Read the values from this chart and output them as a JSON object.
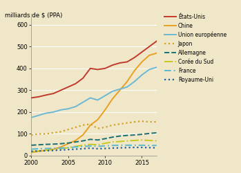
{
  "title": "",
  "ylabel": "milliards de $ (PPA)",
  "background_color": "#f0e6c8",
  "plot_background": "#f0e6c8",
  "grid_color": "#ffffff",
  "years": [
    2000,
    2001,
    2002,
    2003,
    2004,
    2005,
    2006,
    2007,
    2008,
    2009,
    2010,
    2011,
    2012,
    2013,
    2014,
    2015,
    2016,
    2017
  ],
  "series": [
    {
      "label": "États-Unis",
      "color": "#c0392b",
      "linestyle": "solid",
      "linewidth": 1.4,
      "data": [
        265,
        270,
        278,
        285,
        300,
        315,
        330,
        355,
        400,
        395,
        400,
        415,
        425,
        430,
        450,
        475,
        500,
        525
      ]
    },
    {
      "label": "Chine",
      "color": "#e8a020",
      "linestyle": "solid",
      "linewidth": 1.4,
      "data": [
        15,
        20,
        25,
        30,
        40,
        55,
        70,
        95,
        140,
        165,
        210,
        260,
        300,
        340,
        390,
        430,
        460,
        470
      ]
    },
    {
      "label": "Union européenne",
      "color": "#6ab8d4",
      "linestyle": "solid",
      "linewidth": 1.4,
      "data": [
        175,
        185,
        195,
        200,
        210,
        215,
        225,
        245,
        265,
        255,
        275,
        295,
        305,
        315,
        340,
        370,
        395,
        405
      ]
    },
    {
      "label": "Japon",
      "color": "#d4a020",
      "linestyle": "dotted",
      "linewidth": 1.6,
      "data": [
        95,
        100,
        100,
        105,
        110,
        120,
        130,
        140,
        145,
        125,
        130,
        140,
        145,
        150,
        155,
        158,
        155,
        155
      ]
    },
    {
      "label": "Allemagne",
      "color": "#1a7070",
      "linestyle": "dashed",
      "linewidth": 1.4,
      "data": [
        48,
        50,
        52,
        53,
        55,
        58,
        63,
        68,
        75,
        72,
        78,
        85,
        90,
        93,
        95,
        98,
        102,
        105
      ]
    },
    {
      "label": "Corée du Sud",
      "color": "#c8c820",
      "linestyle": "dashdot",
      "linewidth": 1.4,
      "data": [
        18,
        22,
        25,
        28,
        32,
        37,
        43,
        48,
        52,
        50,
        57,
        63,
        65,
        68,
        70,
        72,
        70,
        68
      ]
    },
    {
      "label": "France",
      "color": "#5ab8d0",
      "linestyle": "dashdot",
      "linewidth": 1.4,
      "dashes": [
        5,
        2,
        1,
        2
      ],
      "data": [
        30,
        32,
        33,
        34,
        35,
        37,
        40,
        42,
        45,
        43,
        45,
        47,
        48,
        48,
        48,
        48,
        47,
        47
      ]
    },
    {
      "label": "Royaume-Uni",
      "color": "#2060a0",
      "linestyle": "dotted",
      "linewidth": 1.6,
      "data": [
        20,
        22,
        23,
        24,
        26,
        28,
        30,
        32,
        35,
        32,
        33,
        35,
        36,
        37,
        38,
        38,
        37,
        36
      ]
    }
  ],
  "xlim": [
    2000,
    2017
  ],
  "ylim": [
    0,
    650
  ],
  "yticks": [
    0,
    100,
    200,
    300,
    400,
    500,
    600
  ],
  "xticks": [
    2000,
    2005,
    2010,
    2015
  ],
  "legend_fontsize": 5.5,
  "tick_fontsize": 6.0,
  "ylabel_fontsize": 6.2
}
